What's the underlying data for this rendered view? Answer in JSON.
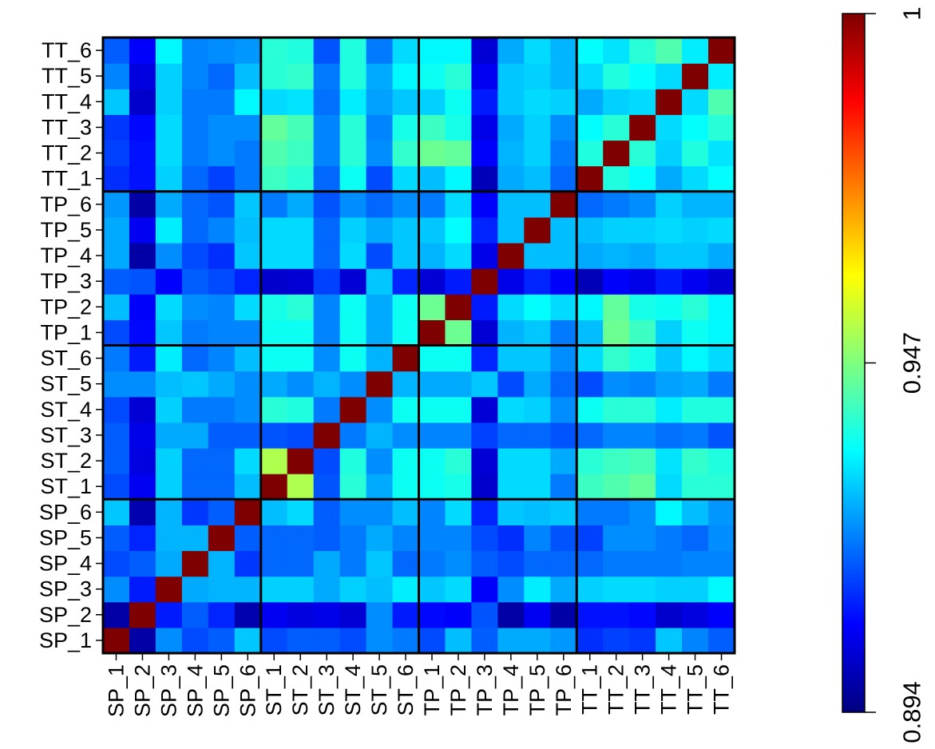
{
  "chart_data": {
    "type": "heatmap",
    "labels": [
      "SP_1",
      "SP_2",
      "SP_3",
      "SP_4",
      "SP_5",
      "SP_6",
      "ST_1",
      "ST_2",
      "ST_3",
      "ST_4",
      "ST_5",
      "ST_6",
      "TP_1",
      "TP_2",
      "TP_3",
      "TP_4",
      "TP_5",
      "TP_6",
      "TT_1",
      "TT_2",
      "TT_3",
      "TT_4",
      "TT_5",
      "TT_6"
    ],
    "group_size": 6,
    "colorscale": {
      "min": 0.894,
      "max": 1,
      "ticks": [
        "0.894",
        "0.947",
        "1"
      ],
      "colors": [
        "#00007F",
        "#0000FF",
        "#007FFF",
        "#00FFFF",
        "#7FFF7F",
        "#FFFF00",
        "#FF7F00",
        "#FF0000",
        "#7F0000"
      ]
    },
    "values": [
      [
        1.0,
        0.898,
        0.922,
        0.915,
        0.917,
        0.928,
        0.915,
        0.917,
        0.917,
        0.915,
        0.922,
        0.92,
        0.915,
        0.927,
        0.917,
        0.925,
        0.925,
        0.923,
        0.912,
        0.914,
        0.913,
        0.928,
        0.921,
        0.917
      ],
      [
        0.898,
        1.0,
        0.91,
        0.917,
        0.911,
        0.899,
        0.906,
        0.904,
        0.905,
        0.903,
        0.922,
        0.91,
        0.908,
        0.907,
        0.916,
        0.898,
        0.906,
        0.898,
        0.909,
        0.909,
        0.908,
        0.902,
        0.904,
        0.907
      ],
      [
        0.922,
        0.91,
        1.0,
        0.925,
        0.926,
        0.926,
        0.929,
        0.929,
        0.925,
        0.929,
        0.927,
        0.932,
        0.928,
        0.93,
        0.907,
        0.922,
        0.932,
        0.925,
        0.929,
        0.93,
        0.93,
        0.929,
        0.929,
        0.933
      ],
      [
        0.915,
        0.917,
        0.925,
        1.0,
        0.926,
        0.913,
        0.918,
        0.918,
        0.925,
        0.92,
        0.928,
        0.918,
        0.92,
        0.922,
        0.917,
        0.915,
        0.918,
        0.918,
        0.918,
        0.92,
        0.92,
        0.92,
        0.921,
        0.921
      ],
      [
        0.917,
        0.911,
        0.926,
        0.926,
        1.0,
        0.917,
        0.918,
        0.918,
        0.917,
        0.92,
        0.925,
        0.921,
        0.921,
        0.921,
        0.915,
        0.912,
        0.921,
        0.916,
        0.914,
        0.922,
        0.922,
        0.92,
        0.918,
        0.922
      ],
      [
        0.928,
        0.899,
        0.926,
        0.913,
        0.917,
        1.0,
        0.927,
        0.93,
        0.917,
        0.922,
        0.922,
        0.927,
        0.921,
        0.93,
        0.911,
        0.928,
        0.927,
        0.928,
        0.92,
        0.92,
        0.922,
        0.933,
        0.927,
        0.923
      ],
      [
        0.915,
        0.906,
        0.929,
        0.918,
        0.918,
        0.927,
        1.0,
        0.952,
        0.916,
        0.938,
        0.925,
        0.935,
        0.935,
        0.936,
        0.902,
        0.93,
        0.93,
        0.92,
        0.94,
        0.942,
        0.944,
        0.93,
        0.938,
        0.938
      ],
      [
        0.917,
        0.904,
        0.929,
        0.918,
        0.918,
        0.93,
        0.952,
        1.0,
        0.915,
        0.937,
        0.922,
        0.935,
        0.935,
        0.938,
        0.903,
        0.93,
        0.93,
        0.925,
        0.938,
        0.94,
        0.941,
        0.931,
        0.939,
        0.937
      ],
      [
        0.917,
        0.905,
        0.925,
        0.925,
        0.917,
        0.917,
        0.916,
        0.915,
        1.0,
        0.92,
        0.926,
        0.922,
        0.921,
        0.921,
        0.914,
        0.918,
        0.918,
        0.916,
        0.918,
        0.921,
        0.921,
        0.919,
        0.92,
        0.916
      ],
      [
        0.915,
        0.903,
        0.929,
        0.92,
        0.92,
        0.922,
        0.938,
        0.937,
        0.92,
        1.0,
        0.922,
        0.935,
        0.935,
        0.935,
        0.903,
        0.93,
        0.929,
        0.922,
        0.935,
        0.938,
        0.938,
        0.932,
        0.937,
        0.937
      ],
      [
        0.922,
        0.922,
        0.927,
        0.928,
        0.925,
        0.922,
        0.925,
        0.922,
        0.926,
        0.922,
        1.0,
        0.926,
        0.925,
        0.925,
        0.928,
        0.915,
        0.925,
        0.918,
        0.915,
        0.922,
        0.921,
        0.924,
        0.925,
        0.92
      ],
      [
        0.92,
        0.91,
        0.932,
        0.918,
        0.921,
        0.927,
        0.935,
        0.935,
        0.922,
        0.935,
        0.926,
        1.0,
        0.935,
        0.935,
        0.911,
        0.928,
        0.928,
        0.922,
        0.93,
        0.939,
        0.936,
        0.928,
        0.933,
        0.93
      ],
      [
        0.915,
        0.908,
        0.928,
        0.92,
        0.921,
        0.921,
        0.935,
        0.935,
        0.921,
        0.935,
        0.925,
        0.935,
        1.0,
        0.945,
        0.903,
        0.926,
        0.928,
        0.92,
        0.927,
        0.945,
        0.94,
        0.929,
        0.935,
        0.933
      ],
      [
        0.927,
        0.907,
        0.93,
        0.922,
        0.921,
        0.93,
        0.936,
        0.938,
        0.921,
        0.935,
        0.925,
        0.935,
        0.945,
        1.0,
        0.91,
        0.93,
        0.934,
        0.93,
        0.933,
        0.944,
        0.936,
        0.935,
        0.938,
        0.933
      ],
      [
        0.917,
        0.916,
        0.907,
        0.917,
        0.915,
        0.911,
        0.902,
        0.903,
        0.914,
        0.903,
        0.928,
        0.911,
        0.903,
        0.91,
        1.0,
        0.905,
        0.911,
        0.907,
        0.9,
        0.907,
        0.905,
        0.91,
        0.906,
        0.903
      ],
      [
        0.925,
        0.898,
        0.922,
        0.915,
        0.912,
        0.928,
        0.93,
        0.93,
        0.918,
        0.93,
        0.915,
        0.928,
        0.926,
        0.93,
        0.905,
        1.0,
        0.927,
        0.927,
        0.925,
        0.926,
        0.925,
        0.928,
        0.928,
        0.925
      ],
      [
        0.925,
        0.906,
        0.932,
        0.918,
        0.921,
        0.927,
        0.93,
        0.93,
        0.918,
        0.929,
        0.925,
        0.928,
        0.928,
        0.934,
        0.911,
        0.927,
        1.0,
        0.927,
        0.927,
        0.929,
        0.929,
        0.93,
        0.929,
        0.93
      ],
      [
        0.923,
        0.898,
        0.925,
        0.918,
        0.916,
        0.928,
        0.92,
        0.925,
        0.916,
        0.922,
        0.918,
        0.922,
        0.92,
        0.93,
        0.907,
        0.927,
        0.927,
        1.0,
        0.918,
        0.92,
        0.922,
        0.929,
        0.926,
        0.926
      ],
      [
        0.912,
        0.909,
        0.929,
        0.918,
        0.914,
        0.92,
        0.94,
        0.938,
        0.918,
        0.935,
        0.915,
        0.93,
        0.927,
        0.933,
        0.9,
        0.925,
        0.927,
        0.918,
        1.0,
        0.937,
        0.934,
        0.925,
        0.93,
        0.934
      ],
      [
        0.914,
        0.909,
        0.93,
        0.92,
        0.922,
        0.92,
        0.942,
        0.94,
        0.921,
        0.938,
        0.922,
        0.939,
        0.945,
        0.944,
        0.907,
        0.926,
        0.929,
        0.92,
        0.937,
        1.0,
        0.938,
        0.929,
        0.937,
        0.931
      ],
      [
        0.913,
        0.908,
        0.93,
        0.92,
        0.922,
        0.922,
        0.944,
        0.941,
        0.921,
        0.938,
        0.921,
        0.936,
        0.94,
        0.936,
        0.905,
        0.925,
        0.929,
        0.922,
        0.934,
        0.938,
        1.0,
        0.93,
        0.934,
        0.938
      ],
      [
        0.928,
        0.902,
        0.929,
        0.92,
        0.92,
        0.933,
        0.93,
        0.931,
        0.919,
        0.932,
        0.924,
        0.928,
        0.929,
        0.935,
        0.91,
        0.928,
        0.93,
        0.929,
        0.925,
        0.929,
        0.93,
        1.0,
        0.93,
        0.942
      ],
      [
        0.921,
        0.904,
        0.929,
        0.921,
        0.918,
        0.927,
        0.938,
        0.939,
        0.92,
        0.937,
        0.925,
        0.933,
        0.935,
        0.938,
        0.906,
        0.928,
        0.929,
        0.926,
        0.93,
        0.937,
        0.934,
        0.93,
        1.0,
        0.932
      ],
      [
        0.917,
        0.907,
        0.933,
        0.921,
        0.922,
        0.923,
        0.938,
        0.937,
        0.916,
        0.937,
        0.92,
        0.93,
        0.933,
        0.933,
        0.903,
        0.925,
        0.93,
        0.926,
        0.934,
        0.931,
        0.938,
        0.942,
        0.932,
        1.0
      ]
    ]
  }
}
